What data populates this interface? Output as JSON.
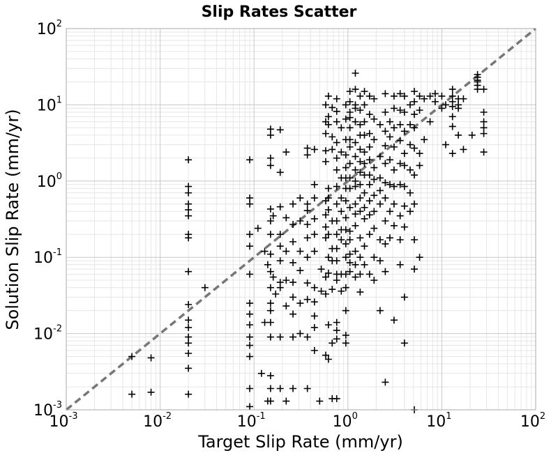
{
  "chart_data": {
    "type": "scatter",
    "title": "Slip Rates Scatter",
    "xlabel": "Target Slip Rate (mm/yr)",
    "ylabel": "Solution Slip Rate (mm/yr)",
    "xscale": "log",
    "yscale": "log",
    "xlim": [
      0.001,
      100
    ],
    "ylim": [
      0.001,
      100
    ],
    "grid": true,
    "grid_minor": true,
    "marker": "plus",
    "marker_color": "#000000",
    "reference_line": {
      "style": "dashed",
      "color": "#777777",
      "x": [
        0.001,
        100
      ],
      "y": [
        0.001,
        100
      ]
    },
    "x_ticks": [
      {
        "base": "10",
        "exp": "-3",
        "value": 0.001
      },
      {
        "base": "10",
        "exp": "-2",
        "value": 0.01
      },
      {
        "base": "10",
        "exp": "-1",
        "value": 0.1
      },
      {
        "base": "10",
        "exp": "0",
        "value": 1
      },
      {
        "base": "10",
        "exp": "1",
        "value": 10
      },
      {
        "base": "10",
        "exp": "2",
        "value": 100
      }
    ],
    "y_ticks": [
      {
        "base": "10",
        "exp": "-3",
        "value": 0.001
      },
      {
        "base": "10",
        "exp": "-2",
        "value": 0.01
      },
      {
        "base": "10",
        "exp": "-1",
        "value": 0.1
      },
      {
        "base": "10",
        "exp": "0",
        "value": 1
      },
      {
        "base": "10",
        "exp": "1",
        "value": 10
      },
      {
        "base": "10",
        "exp": "2",
        "value": 100
      }
    ],
    "points": [
      [
        0.005,
        0.005
      ],
      [
        0.005,
        0.0016
      ],
      [
        0.008,
        0.0048
      ],
      [
        0.008,
        0.0017
      ],
      [
        0.02,
        1.9
      ],
      [
        0.02,
        0.85
      ],
      [
        0.02,
        0.7
      ],
      [
        0.02,
        0.5
      ],
      [
        0.02,
        0.42
      ],
      [
        0.02,
        0.35
      ],
      [
        0.02,
        0.2
      ],
      [
        0.02,
        0.18
      ],
      [
        0.02,
        0.065
      ],
      [
        0.02,
        0.024
      ],
      [
        0.02,
        0.015
      ],
      [
        0.02,
        0.012
      ],
      [
        0.02,
        0.009
      ],
      [
        0.02,
        0.0075
      ],
      [
        0.02,
        0.0055
      ],
      [
        0.02,
        0.0035
      ],
      [
        0.02,
        0.0016
      ],
      [
        0.03,
        0.04
      ],
      [
        0.09,
        1.9
      ],
      [
        0.09,
        0.6
      ],
      [
        0.09,
        0.5
      ],
      [
        0.09,
        0.2
      ],
      [
        0.09,
        0.14
      ],
      [
        0.09,
        0.06
      ],
      [
        0.09,
        0.025
      ],
      [
        0.09,
        0.018
      ],
      [
        0.09,
        0.013
      ],
      [
        0.09,
        0.009
      ],
      [
        0.09,
        0.007
      ],
      [
        0.09,
        0.005
      ],
      [
        0.09,
        0.0019
      ],
      [
        0.09,
        0.0011
      ],
      [
        0.11,
        0.24
      ],
      [
        0.12,
        0.003
      ],
      [
        0.13,
        0.014
      ],
      [
        0.14,
        0.0013
      ],
      [
        0.15,
        4.8
      ],
      [
        0.15,
        4.0
      ],
      [
        0.15,
        2.0
      ],
      [
        0.15,
        1.6
      ],
      [
        0.15,
        0.43
      ],
      [
        0.15,
        0.3
      ],
      [
        0.15,
        0.2
      ],
      [
        0.15,
        0.11
      ],
      [
        0.15,
        0.065
      ],
      [
        0.15,
        0.04
      ],
      [
        0.15,
        0.025
      ],
      [
        0.15,
        0.02
      ],
      [
        0.15,
        0.014
      ],
      [
        0.15,
        0.009
      ],
      [
        0.15,
        0.0028
      ],
      [
        0.15,
        0.0019
      ],
      [
        0.15,
        0.0013
      ],
      [
        0.13,
        0.12
      ],
      [
        0.14,
        0.08
      ],
      [
        0.16,
        0.35
      ],
      [
        0.16,
        0.055
      ],
      [
        0.17,
        0.033
      ],
      [
        0.19,
        4.7
      ],
      [
        0.19,
        1.3
      ],
      [
        0.19,
        0.46
      ],
      [
        0.19,
        0.2
      ],
      [
        0.19,
        0.14
      ],
      [
        0.19,
        0.09
      ],
      [
        0.19,
        0.047
      ],
      [
        0.19,
        0.04
      ],
      [
        0.19,
        0.009
      ],
      [
        0.19,
        0.0019
      ],
      [
        0.22,
        2.4
      ],
      [
        0.22,
        0.33
      ],
      [
        0.22,
        0.12
      ],
      [
        0.22,
        0.05
      ],
      [
        0.22,
        0.023
      ],
      [
        0.22,
        0.0013
      ],
      [
        0.26,
        0.5
      ],
      [
        0.26,
        0.27
      ],
      [
        0.26,
        0.16
      ],
      [
        0.26,
        0.085
      ],
      [
        0.26,
        0.047
      ],
      [
        0.26,
        0.03
      ],
      [
        0.26,
        0.018
      ],
      [
        0.26,
        0.009
      ],
      [
        0.26,
        0.0019
      ],
      [
        0.31,
        0.6
      ],
      [
        0.31,
        0.3
      ],
      [
        0.31,
        0.12
      ],
      [
        0.31,
        0.067
      ],
      [
        0.31,
        0.025
      ],
      [
        0.31,
        0.01
      ],
      [
        0.37,
        2.7
      ],
      [
        0.37,
        2.2
      ],
      [
        0.37,
        0.5
      ],
      [
        0.37,
        0.41
      ],
      [
        0.37,
        0.27
      ],
      [
        0.37,
        0.18
      ],
      [
        0.37,
        0.1
      ],
      [
        0.37,
        0.046
      ],
      [
        0.37,
        0.028
      ],
      [
        0.37,
        0.009
      ],
      [
        0.37,
        0.0019
      ],
      [
        0.44,
        2.6
      ],
      [
        0.44,
        0.9
      ],
      [
        0.44,
        0.6
      ],
      [
        0.44,
        0.32
      ],
      [
        0.44,
        0.2
      ],
      [
        0.44,
        0.12
      ],
      [
        0.44,
        0.04
      ],
      [
        0.44,
        0.026
      ],
      [
        0.44,
        0.017
      ],
      [
        0.44,
        0.012
      ],
      [
        0.44,
        0.006
      ],
      [
        0.5,
        0.0013
      ],
      [
        0.52,
        0.07
      ],
      [
        0.52,
        0.036
      ],
      [
        0.58,
        10.0
      ],
      [
        0.58,
        6.0
      ],
      [
        0.58,
        4.2
      ],
      [
        0.58,
        2.5
      ],
      [
        0.58,
        1.8
      ],
      [
        0.58,
        0.55
      ],
      [
        0.58,
        0.36
      ],
      [
        0.58,
        0.25
      ],
      [
        0.58,
        0.18
      ],
      [
        0.58,
        0.055
      ],
      [
        0.58,
        0.033
      ],
      [
        0.58,
        0.0052
      ],
      [
        0.62,
        13.0
      ],
      [
        0.62,
        7.0
      ],
      [
        0.62,
        5.5
      ],
      [
        0.62,
        0.8
      ],
      [
        0.62,
        0.6
      ],
      [
        0.62,
        0.42
      ],
      [
        0.62,
        0.2
      ],
      [
        0.62,
        0.1
      ],
      [
        0.62,
        0.062
      ],
      [
        0.62,
        0.013
      ],
      [
        0.62,
        0.0046
      ],
      [
        0.68,
        9.2
      ],
      [
        0.68,
        3.8
      ],
      [
        0.68,
        2.6
      ],
      [
        0.68,
        0.3
      ],
      [
        0.68,
        0.13
      ],
      [
        0.68,
        0.09
      ],
      [
        0.68,
        0.038
      ],
      [
        0.68,
        0.0075
      ],
      [
        0.68,
        0.0014
      ],
      [
        0.76,
        12.0
      ],
      [
        0.76,
        8.2
      ],
      [
        0.76,
        6.0
      ],
      [
        0.76,
        3.2
      ],
      [
        0.76,
        2.0
      ],
      [
        0.76,
        1.4
      ],
      [
        0.76,
        0.85
      ],
      [
        0.76,
        0.5
      ],
      [
        0.76,
        0.3
      ],
      [
        0.76,
        0.2
      ],
      [
        0.76,
        0.13
      ],
      [
        0.76,
        0.09
      ],
      [
        0.76,
        0.06
      ],
      [
        0.76,
        0.05
      ],
      [
        0.76,
        0.014
      ],
      [
        0.76,
        0.011
      ],
      [
        0.76,
        0.0085
      ],
      [
        0.76,
        0.0014
      ],
      [
        0.85,
        5.0
      ],
      [
        0.85,
        2.4
      ],
      [
        0.85,
        1.1
      ],
      [
        0.85,
        0.6
      ],
      [
        0.85,
        0.4
      ],
      [
        0.85,
        0.23
      ],
      [
        0.85,
        0.17
      ],
      [
        0.85,
        0.06
      ],
      [
        0.85,
        0.036
      ],
      [
        0.95,
        10.0
      ],
      [
        0.95,
        6.5
      ],
      [
        0.95,
        3.5
      ],
      [
        0.95,
        2.2
      ],
      [
        0.95,
        1.5
      ],
      [
        0.95,
        1.1
      ],
      [
        0.95,
        0.8
      ],
      [
        0.95,
        0.55
      ],
      [
        0.95,
        0.33
      ],
      [
        0.95,
        0.23
      ],
      [
        0.95,
        0.15
      ],
      [
        0.95,
        0.1
      ],
      [
        0.95,
        0.06
      ],
      [
        0.95,
        0.04
      ],
      [
        0.95,
        0.02
      ],
      [
        0.95,
        0.0095
      ],
      [
        0.95,
        0.0075
      ],
      [
        1.05,
        15.0
      ],
      [
        1.05,
        11.0
      ],
      [
        1.05,
        8.0
      ],
      [
        1.05,
        6.8
      ],
      [
        1.05,
        5.0
      ],
      [
        1.05,
        3.5
      ],
      [
        1.05,
        2.8
      ],
      [
        1.05,
        1.7
      ],
      [
        1.05,
        1.1
      ],
      [
        1.05,
        0.8
      ],
      [
        1.05,
        0.45
      ],
      [
        1.05,
        0.22
      ],
      [
        1.05,
        0.17
      ],
      [
        1.05,
        0.11
      ],
      [
        1.05,
        0.085
      ],
      [
        1.05,
        0.065
      ],
      [
        1.2,
        26.0
      ],
      [
        1.2,
        16.0
      ],
      [
        1.2,
        10.0
      ],
      [
        1.2,
        9.0
      ],
      [
        1.2,
        6.0
      ],
      [
        1.2,
        3.2
      ],
      [
        1.2,
        2.1
      ],
      [
        1.2,
        1.4
      ],
      [
        1.2,
        1.0
      ],
      [
        1.2,
        0.85
      ],
      [
        1.2,
        0.5
      ],
      [
        1.2,
        0.37
      ],
      [
        1.2,
        0.26
      ],
      [
        1.2,
        0.12
      ],
      [
        1.2,
        0.08
      ],
      [
        1.2,
        0.055
      ],
      [
        1.35,
        13.0
      ],
      [
        1.35,
        8.5
      ],
      [
        1.35,
        5.5
      ],
      [
        1.35,
        4.0
      ],
      [
        1.35,
        2.6
      ],
      [
        1.35,
        1.8
      ],
      [
        1.35,
        1.3
      ],
      [
        1.35,
        0.9
      ],
      [
        1.35,
        0.6
      ],
      [
        1.35,
        0.4
      ],
      [
        1.35,
        0.18
      ],
      [
        1.35,
        0.1
      ],
      [
        1.35,
        0.06
      ],
      [
        1.35,
        0.035
      ],
      [
        1.5,
        15.0
      ],
      [
        1.5,
        10.0
      ],
      [
        1.5,
        6.0
      ],
      [
        1.5,
        4.0
      ],
      [
        1.5,
        2.4
      ],
      [
        1.5,
        1.7
      ],
      [
        1.5,
        1.2
      ],
      [
        1.5,
        0.7
      ],
      [
        1.5,
        0.45
      ],
      [
        1.5,
        0.32
      ],
      [
        1.5,
        0.14
      ],
      [
        1.5,
        0.08
      ],
      [
        1.7,
        13.0
      ],
      [
        1.7,
        7.5
      ],
      [
        1.7,
        4.2
      ],
      [
        1.7,
        2.8
      ],
      [
        1.7,
        1.9
      ],
      [
        1.7,
        1.2
      ],
      [
        1.7,
        0.9
      ],
      [
        1.7,
        0.55
      ],
      [
        1.7,
        0.36
      ],
      [
        1.7,
        0.2
      ],
      [
        1.7,
        0.06
      ],
      [
        1.9,
        12.0
      ],
      [
        1.9,
        6.5
      ],
      [
        1.9,
        3.5
      ],
      [
        1.9,
        1.5
      ],
      [
        1.9,
        1.05
      ],
      [
        1.9,
        0.65
      ],
      [
        1.9,
        0.4
      ],
      [
        1.9,
        0.24
      ],
      [
        1.9,
        0.1
      ],
      [
        1.9,
        0.05
      ],
      [
        2.2,
        5.5
      ],
      [
        2.2,
        2.1
      ],
      [
        2.2,
        1.1
      ],
      [
        2.2,
        0.75
      ],
      [
        2.2,
        0.5
      ],
      [
        2.2,
        0.17
      ],
      [
        2.2,
        0.09
      ],
      [
        2.2,
        0.02
      ],
      [
        2.5,
        14.0
      ],
      [
        2.5,
        8.0
      ],
      [
        2.5,
        4.5
      ],
      [
        2.5,
        2.9
      ],
      [
        2.5,
        1.7
      ],
      [
        2.5,
        0.95
      ],
      [
        2.5,
        0.6
      ],
      [
        2.5,
        0.3
      ],
      [
        2.5,
        0.15
      ],
      [
        2.5,
        0.065
      ],
      [
        2.5,
        0.0023
      ],
      [
        2.8,
        6.0
      ],
      [
        2.8,
        3.8
      ],
      [
        2.8,
        1.9
      ],
      [
        2.8,
        0.9
      ],
      [
        2.8,
        0.4
      ],
      [
        2.8,
        0.18
      ],
      [
        3.1,
        13.0
      ],
      [
        3.1,
        9.0
      ],
      [
        3.1,
        5.0
      ],
      [
        3.1,
        2.8
      ],
      [
        3.1,
        1.4
      ],
      [
        3.1,
        0.85
      ],
      [
        3.1,
        0.5
      ],
      [
        3.1,
        0.26
      ],
      [
        3.1,
        0.015
      ],
      [
        3.6,
        14.0
      ],
      [
        3.6,
        8.5
      ],
      [
        3.6,
        5.5
      ],
      [
        3.6,
        3.4
      ],
      [
        3.6,
        1.7
      ],
      [
        3.6,
        0.9
      ],
      [
        3.6,
        0.35
      ],
      [
        3.6,
        0.17
      ],
      [
        3.6,
        0.08
      ],
      [
        4.0,
        13.0
      ],
      [
        4.0,
        8.0
      ],
      [
        4.0,
        4.5
      ],
      [
        4.0,
        2.3
      ],
      [
        4.0,
        1.6
      ],
      [
        4.0,
        0.85
      ],
      [
        4.0,
        0.47
      ],
      [
        4.0,
        0.25
      ],
      [
        4.0,
        0.03
      ],
      [
        4.0,
        0.0075
      ],
      [
        4.6,
        10.0
      ],
      [
        4.6,
        5.5
      ],
      [
        4.6,
        3.0
      ],
      [
        4.6,
        1.4
      ],
      [
        4.6,
        0.7
      ],
      [
        4.6,
        0.4
      ],
      [
        5.1,
        15.0
      ],
      [
        5.1,
        11.0
      ],
      [
        5.1,
        7.5
      ],
      [
        5.1,
        5.0
      ],
      [
        5.1,
        2.7
      ],
      [
        5.1,
        1.2
      ],
      [
        5.1,
        0.5
      ],
      [
        5.1,
        0.17
      ],
      [
        5.1,
        0.07
      ],
      [
        5.1,
        0.001
      ],
      [
        5.8,
        13.0
      ],
      [
        5.8,
        8.5
      ],
      [
        5.8,
        2.3
      ],
      [
        5.8,
        1.6
      ],
      [
        5.8,
        0.1
      ],
      [
        6.5,
        12.0
      ],
      [
        6.5,
        3.5
      ],
      [
        7.5,
        13.0
      ],
      [
        7.5,
        6.0
      ],
      [
        8.5,
        11.0
      ],
      [
        8.5,
        14.0
      ],
      [
        10.0,
        9.0
      ],
      [
        10.0,
        13.0
      ],
      [
        11.0,
        3.0
      ],
      [
        11.0,
        10.0
      ],
      [
        13.0,
        16.0
      ],
      [
        13.0,
        13.0
      ],
      [
        13.0,
        11.0
      ],
      [
        13.0,
        9.5
      ],
      [
        13.0,
        7.0
      ],
      [
        13.0,
        5.2
      ],
      [
        13.0,
        2.3
      ],
      [
        15.0,
        12.0
      ],
      [
        15.0,
        10.0
      ],
      [
        15.0,
        9.0
      ],
      [
        15.0,
        4.0
      ],
      [
        17.0,
        12.0
      ],
      [
        17.0,
        2.6
      ],
      [
        21.0,
        4.0
      ],
      [
        24.0,
        25.0
      ],
      [
        24.0,
        23.0
      ],
      [
        24.0,
        21.0
      ],
      [
        24.0,
        20.0
      ],
      [
        24.0,
        18.0
      ],
      [
        24.0,
        16.0
      ],
      [
        28.0,
        16.0
      ],
      [
        28.0,
        8.0
      ],
      [
        28.0,
        6.0
      ],
      [
        28.0,
        5.0
      ],
      [
        28.0,
        4.2
      ],
      [
        28.0,
        2.4
      ]
    ]
  }
}
